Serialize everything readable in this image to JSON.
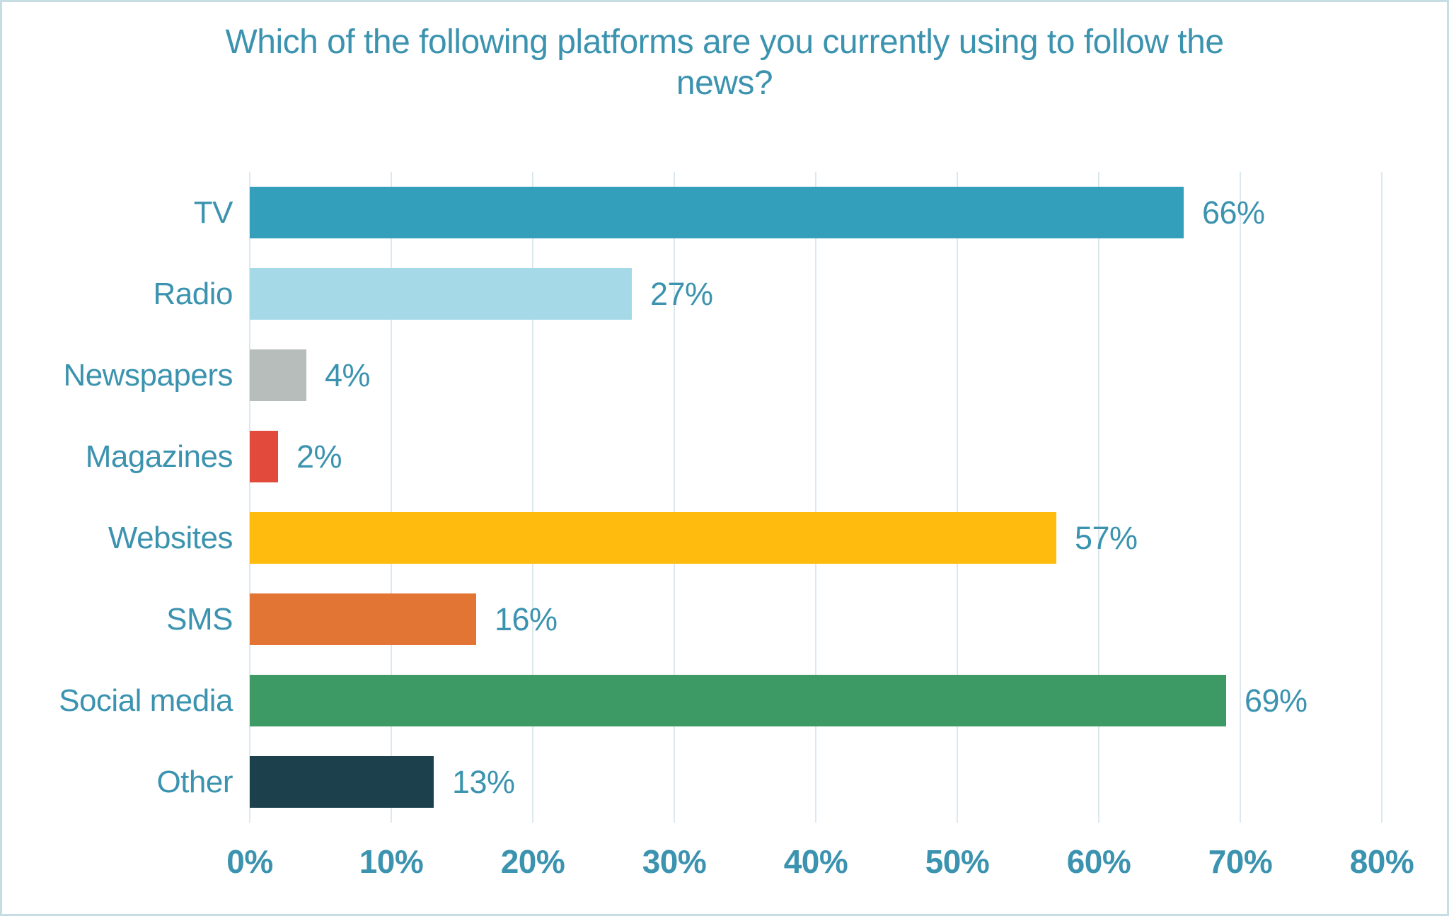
{
  "frame": {
    "background": "#ffffff",
    "border_color": "#c5dde3"
  },
  "chart_data": {
    "type": "bar",
    "orientation": "horizontal",
    "title": "Which of the following platforms are you currently using to follow the news?",
    "categories": [
      "TV",
      "Radio",
      "Newspapers",
      "Magazines",
      "Websites",
      "SMS",
      "Social media",
      "Other"
    ],
    "values": [
      66,
      27,
      4,
      2,
      57,
      16,
      69,
      13
    ],
    "value_labels": [
      "66%",
      "27%",
      "4%",
      "2%",
      "57%",
      "16%",
      "69%",
      "13%"
    ],
    "bar_colors": [
      "#349fba",
      "#a6d9e8",
      "#b6bdbb",
      "#e24a3b",
      "#ffbb0e",
      "#e27434",
      "#3d9a64",
      "#1c414d"
    ],
    "x_ticks": [
      "0%",
      "10%",
      "20%",
      "30%",
      "40%",
      "50%",
      "60%",
      "70%",
      "80%"
    ],
    "xlim": [
      0,
      80
    ],
    "xlabel": "",
    "ylabel": "",
    "grid": true,
    "legend": false,
    "text_color": "#3b93af",
    "gridline_color": "#dbe8f0"
  }
}
